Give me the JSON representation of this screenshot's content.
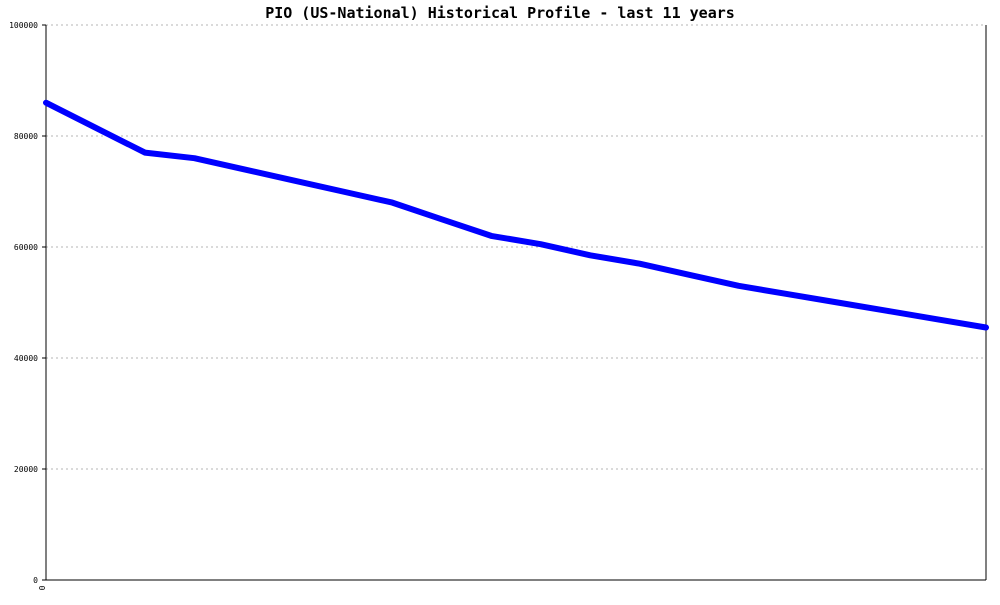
{
  "chart_data": {
    "type": "line",
    "title": "PIO (US-National) Historical Profile - last 11 years",
    "xlabel": "",
    "ylabel": "",
    "ylim": [
      0,
      100000
    ],
    "y_ticks": [
      "0",
      "20000",
      "40000",
      "60000",
      "80000",
      "100000"
    ],
    "x_tick_labels": [
      "0"
    ],
    "grid": true,
    "legend": "none",
    "series": [
      {
        "color": "#0000ff",
        "values": [
          86000,
          81500,
          77000,
          76000,
          74000,
          72000,
          70000,
          68000,
          65000,
          62000,
          60500,
          58500,
          57000,
          55000,
          53000,
          51500,
          50000,
          48500,
          47000,
          45500
        ]
      }
    ]
  }
}
